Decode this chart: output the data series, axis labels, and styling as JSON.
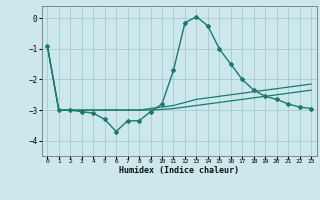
{
  "xlabel": "Humidex (Indice chaleur)",
  "ylabel": "",
  "bg_color": "#cce8ec",
  "grid_color": "#aacdd4",
  "line_color": "#1a7a6e",
  "xlim": [
    -0.5,
    23.5
  ],
  "ylim": [
    -4.5,
    0.4
  ],
  "xticks": [
    0,
    1,
    2,
    3,
    4,
    5,
    6,
    7,
    8,
    9,
    10,
    11,
    12,
    13,
    14,
    15,
    16,
    17,
    18,
    19,
    20,
    21,
    22,
    23
  ],
  "yticks": [
    0,
    -1,
    -2,
    -3,
    -4
  ],
  "line1_x": [
    0,
    1,
    2,
    3,
    4,
    5,
    6,
    7,
    8,
    9,
    10,
    11,
    12,
    13,
    14,
    15,
    16,
    17,
    18,
    19,
    20,
    21,
    22,
    23
  ],
  "line1_y": [
    -0.9,
    -3.0,
    -3.0,
    -3.05,
    -3.1,
    -3.3,
    -3.7,
    -3.35,
    -3.35,
    -3.05,
    -2.8,
    -1.7,
    -0.15,
    0.05,
    -0.25,
    -1.0,
    -1.5,
    -2.0,
    -2.35,
    -2.55,
    -2.65,
    -2.8,
    -2.9,
    -2.95
  ],
  "line2_x": [
    0,
    1,
    2,
    3,
    4,
    5,
    6,
    7,
    8,
    9,
    10,
    11,
    12,
    13,
    14,
    15,
    16,
    17,
    18,
    19,
    20,
    21,
    22,
    23
  ],
  "line2_y": [
    -0.9,
    -3.0,
    -3.0,
    -3.0,
    -3.0,
    -3.0,
    -3.0,
    -3.0,
    -3.0,
    -2.95,
    -2.9,
    -2.85,
    -2.75,
    -2.65,
    -2.6,
    -2.55,
    -2.5,
    -2.45,
    -2.4,
    -2.35,
    -2.3,
    -2.25,
    -2.2,
    -2.15
  ],
  "line3_x": [
    0,
    1,
    2,
    3,
    4,
    5,
    6,
    7,
    8,
    9,
    10,
    11,
    12,
    13,
    14,
    15,
    16,
    17,
    18,
    19,
    20,
    21,
    22,
    23
  ],
  "line3_y": [
    -0.9,
    -3.0,
    -3.0,
    -3.0,
    -3.0,
    -3.0,
    -3.0,
    -3.0,
    -3.0,
    -3.0,
    -2.98,
    -2.95,
    -2.9,
    -2.85,
    -2.8,
    -2.75,
    -2.7,
    -2.65,
    -2.6,
    -2.55,
    -2.5,
    -2.45,
    -2.4,
    -2.35
  ]
}
